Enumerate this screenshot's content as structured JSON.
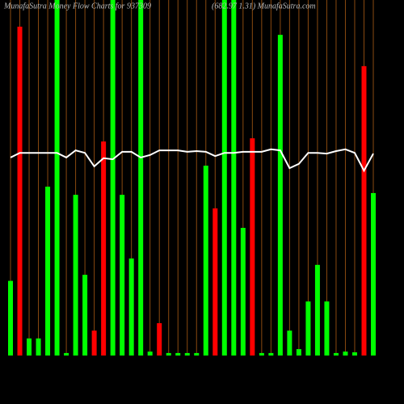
{
  "chart_data": {
    "type": "bar",
    "title": "MunafaSutra  Money Flow  Charts for 937309",
    "subtitle": "(682.97  1.31) MunafaSutra.com",
    "categories": [
      null,
      null,
      null,
      null,
      null,
      null,
      null,
      null,
      null,
      null,
      null,
      null,
      null,
      null,
      null,
      null,
      null,
      null,
      null,
      null,
      null,
      null,
      null,
      null,
      null,
      null,
      null,
      null,
      null,
      null,
      null,
      null,
      null,
      null,
      null,
      null,
      null,
      null,
      null,
      null
    ],
    "ylim": [
      0,
      100
    ],
    "grid": true,
    "grid_color": "#8a4a10",
    "series": [
      {
        "values": [
          21,
          92.5,
          4.8,
          4.8,
          47.5,
          100,
          0.7,
          45.2,
          22.7,
          7,
          60.2,
          100,
          45.2,
          27.3,
          100,
          1.1,
          9.1,
          0.7,
          0.7,
          0.7,
          0.7,
          53.4,
          41.4,
          100,
          100,
          35.9,
          61.1,
          0.7,
          0.7,
          90.2,
          7,
          1.8,
          15.2,
          25.5,
          15.2,
          0.7,
          1.1,
          0.9,
          81.4,
          45.7
        ],
        "colors": [
          "#00ff00",
          "#ff0000",
          "#00ff00",
          "#00ff00",
          "#00ff00",
          "#00ff00",
          "#00ff00",
          "#00ff00",
          "#00ff00",
          "#ff0000",
          "#ff0000",
          "#00ff00",
          "#00ff00",
          "#00ff00",
          "#00ff00",
          "#00ff00",
          "#ff0000",
          "#00ff00",
          "#00ff00",
          "#00ff00",
          "#00ff00",
          "#00ff00",
          "#ff0000",
          "#00ff00",
          "#00ff00",
          "#00ff00",
          "#ff0000",
          "#00ff00",
          "#00ff00",
          "#00ff00",
          "#00ff00",
          "#00ff00",
          "#00ff00",
          "#00ff00",
          "#00ff00",
          "#00ff00",
          "#00ff00",
          "#00ff00",
          "#ff0000",
          "#00ff00"
        ]
      },
      {
        "type": "line",
        "color": "#ffffff",
        "values": [
          55.7,
          57,
          57,
          57,
          57,
          57,
          55.7,
          57.7,
          57,
          53.2,
          55.5,
          55.2,
          57.3,
          57.3,
          55.7,
          56.4,
          57.7,
          57.7,
          57.7,
          57.3,
          57.5,
          57.3,
          56.1,
          57,
          57,
          57.3,
          57.3,
          57.3,
          58,
          57.7,
          52.7,
          53.9,
          57,
          57,
          56.8,
          57.5,
          58,
          57,
          52,
          56.8
        ]
      }
    ]
  }
}
